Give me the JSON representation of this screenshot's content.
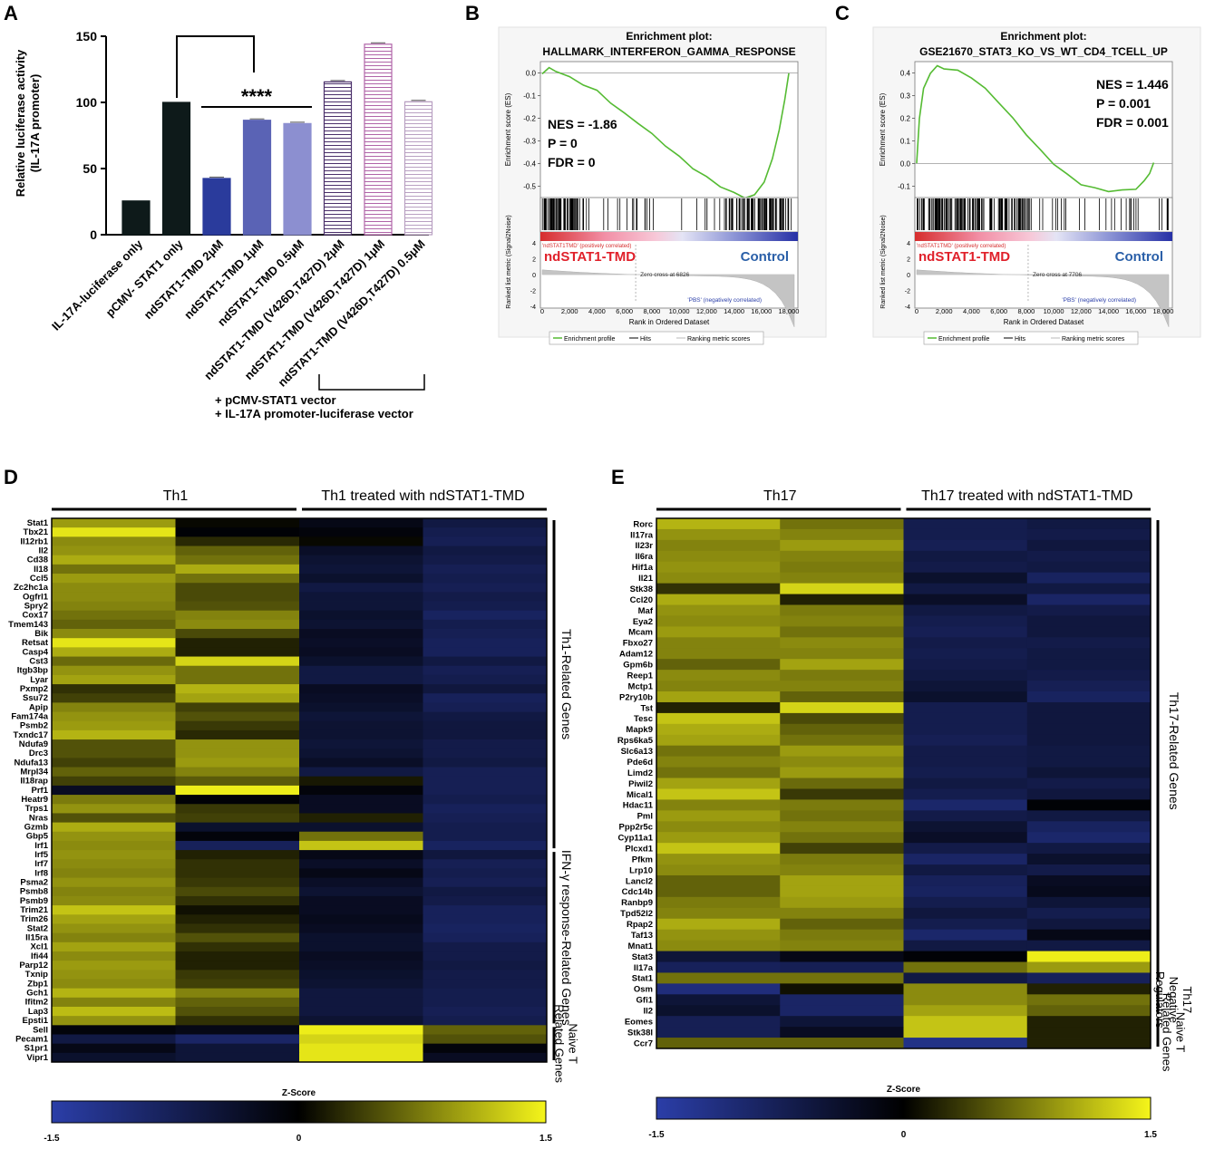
{
  "panels": {
    "a": "A",
    "b": "B",
    "c": "C",
    "d": "D",
    "e": "E"
  },
  "chart_data": [
    {
      "id": "A",
      "type": "bar",
      "title": "",
      "ylabel": "Relative luciferase activity\n(IL-17A promoter)",
      "ylim": [
        0,
        150
      ],
      "yticks": [
        0,
        50,
        100,
        150
      ],
      "categories": [
        "IL-17A-luciferase only",
        "pCMV- STAT1 only",
        "ndSTAT1-TMD 2μM",
        "ndSTAT1-TMD 1μM",
        "ndSTAT1-TMD 0.5μM",
        "ndSTAT1-TMD (V426D,T427D) 2μM",
        "ndSTAT1-TMD (V426D,T427D) 1μM",
        "ndSTAT1-TMD (V426D,T427D) 0.5μM"
      ],
      "values": [
        25.5,
        100,
        42.5,
        86.5,
        84,
        115.5,
        144,
        100.5
      ],
      "colors": [
        "#0e1a1a",
        "#0e1a1a",
        "#2a3b9c",
        "#5a63b5",
        "#8c8fd0",
        "#4a2f6a",
        "#b064a8",
        "#b9a0c2"
      ],
      "patterns": [
        "solid",
        "solid",
        "solid",
        "solid",
        "solid",
        "hatch",
        "hatch",
        "hatch"
      ],
      "significance": "****",
      "footnote": [
        "+ pCMV-STAT1 vector",
        "+ IL-17A promoter-luciferase vector"
      ]
    },
    {
      "id": "B",
      "type": "line",
      "title": [
        "Enrichment plot:",
        "HALLMARK_INTERFERON_GAMMA_RESPONSE"
      ],
      "ylabel": "Enrichment score (ES)",
      "ylabel2": "Ranked list metric (Signal2Noise)",
      "xlabel": "Rank in Ordered Dataset",
      "ylim": [
        -0.55,
        0.05
      ],
      "yticks": [
        "0.0",
        "-0.1",
        "-0.2",
        "-0.3",
        "-0.4",
        "-0.5"
      ],
      "xticks": [
        "0",
        "2,000",
        "4,000",
        "6,000",
        "8,000",
        "10,000",
        "12,000",
        "14,000",
        "16,000",
        "18,000"
      ],
      "x": [
        0,
        500,
        1000,
        2000,
        3000,
        4000,
        5000,
        6000,
        7000,
        8000,
        9000,
        10000,
        11000,
        12000,
        13000,
        14000,
        14800,
        15500,
        16200,
        16800,
        17300,
        17700,
        18000
      ],
      "es": [
        0.0,
        0.02,
        0.01,
        -0.02,
        -0.05,
        -0.08,
        -0.13,
        -0.18,
        -0.22,
        -0.27,
        -0.32,
        -0.37,
        -0.42,
        -0.46,
        -0.5,
        -0.53,
        -0.55,
        -0.54,
        -0.48,
        -0.38,
        -0.25,
        -0.12,
        0.0
      ],
      "stats": [
        "NES = -1.86",
        "P = 0",
        "FDR = 0"
      ],
      "pos_label": "ndSTAT1-TMD",
      "neg_label": "Control",
      "bar_pos_text": "'ndSTAT1TMD' (positively correlated)",
      "bar_neg_text": "'PBS' (negatively correlated)",
      "zero_cross": "Zero cross at 6826",
      "metric_ticks": [
        "4",
        "2",
        "0",
        "-2",
        "-4"
      ],
      "legend": [
        "Enrichment profile",
        "Hits",
        "Ranking metric scores"
      ]
    },
    {
      "id": "C",
      "type": "line",
      "title": [
        "Enrichment plot:",
        "GSE21670_STAT3_KO_VS_WT_CD4_TCELL_UP"
      ],
      "ylabel": "Enrichment score (ES)",
      "ylabel2": "Ranked list metric (Signal2Noise)",
      "xlabel": "Rank in Ordered Dataset",
      "ylim": [
        -0.15,
        0.45
      ],
      "yticks": [
        "0.4",
        "0.3",
        "0.2",
        "0.1",
        "0.0",
        "-0.1"
      ],
      "xticks": [
        "0",
        "2,000",
        "4,000",
        "6,000",
        "8,000",
        "10,000",
        "12,000",
        "14,000",
        "16,000",
        "18,000"
      ],
      "x": [
        0,
        200,
        500,
        1000,
        1500,
        2000,
        3000,
        4000,
        5000,
        6000,
        7000,
        8000,
        9000,
        10000,
        11000,
        12000,
        13000,
        14000,
        15000,
        16000,
        16600,
        17000,
        17300
      ],
      "es": [
        0.0,
        0.2,
        0.33,
        0.4,
        0.43,
        0.42,
        0.41,
        0.38,
        0.33,
        0.27,
        0.2,
        0.13,
        0.06,
        0.0,
        -0.05,
        -0.09,
        -0.11,
        -0.12,
        -0.12,
        -0.11,
        -0.08,
        -0.04,
        0.0
      ],
      "stats": [
        "NES = 1.446",
        "P = 0.001",
        "FDR = 0.001"
      ],
      "pos_label": "ndSTAT1-TMD",
      "neg_label": "Control",
      "bar_pos_text": "'ndSTAT1TMD' (positively correlated)",
      "bar_neg_text": "'PBS' (negatively correlated)",
      "zero_cross": "Zero cross at 7706",
      "metric_ticks": [
        "4",
        "2",
        "0",
        "-2",
        "-4"
      ],
      "legend": [
        "Enrichment profile",
        "Hits",
        "Ranking metric scores"
      ]
    },
    {
      "id": "D",
      "type": "heatmap",
      "groups": [
        "Th1",
        "Th1 treated with ndSTAT1-TMD"
      ],
      "rows": [
        "Stat1",
        "Tbx21",
        "Il12rb1",
        "Il2",
        "Cd38",
        "Il18",
        "Ccl5",
        "Zc2hc1a",
        "Ogfrl1",
        "Spry2",
        "Cox17",
        "Tmem143",
        "Bik",
        "Retsat",
        "Casp4",
        "Cst3",
        "Itgb3bp",
        "Lyar",
        "Pxmp2",
        "Ssu72",
        "Apip",
        "Fam174a",
        "Psmb2",
        "Txndc17",
        "Ndufa9",
        "Drc3",
        "Ndufa13",
        "Mrpl34",
        "Il18rap",
        "Prf1",
        "Heatr9",
        "Trps1",
        "Nras",
        "Gzmb",
        "Gbp5",
        "Irf1",
        "Irf5",
        "Irf7",
        "Irf8",
        "Psma2",
        "Psmb8",
        "Psmb9",
        "Trim21",
        "Trim26",
        "Stat2",
        "Il15ra",
        "Xcl1",
        "Ifi44",
        "Parp12",
        "Txnip",
        "Zbp1",
        "Gch1",
        "Ifitm2",
        "Lap3",
        "Epsti1",
        "Sell",
        "Pecam1",
        "S1pr1",
        "Vipr1"
      ],
      "z": [
        [
          0.95,
          0.05,
          -0.2,
          -0.6
        ],
        [
          1.4,
          -0.05,
          -0.1,
          -0.7
        ],
        [
          0.85,
          0.25,
          0.05,
          -0.75
        ],
        [
          0.9,
          0.6,
          -0.35,
          -0.6
        ],
        [
          1.05,
          0.7,
          -0.45,
          -0.65
        ],
        [
          0.7,
          1.05,
          -0.5,
          -0.75
        ],
        [
          0.95,
          0.7,
          -0.4,
          -0.7
        ],
        [
          0.85,
          0.45,
          -0.6,
          -0.75
        ],
        [
          0.85,
          0.45,
          -0.5,
          -0.65
        ],
        [
          0.8,
          0.5,
          -0.5,
          -0.7
        ],
        [
          0.7,
          0.8,
          -0.4,
          -0.85
        ],
        [
          0.6,
          0.85,
          -0.45,
          -0.7
        ],
        [
          0.85,
          0.45,
          -0.3,
          -0.75
        ],
        [
          1.4,
          0.2,
          -0.35,
          -0.8
        ],
        [
          1.05,
          0.2,
          -0.3,
          -0.8
        ],
        [
          0.65,
          1.3,
          -0.4,
          -0.6
        ],
        [
          0.9,
          0.7,
          -0.6,
          -0.75
        ],
        [
          1.0,
          0.7,
          -0.6,
          -0.7
        ],
        [
          0.3,
          1.1,
          -0.3,
          -0.55
        ],
        [
          0.4,
          1.0,
          -0.35,
          -0.8
        ],
        [
          0.8,
          0.4,
          -0.4,
          -0.75
        ],
        [
          0.9,
          0.5,
          -0.5,
          -0.6
        ],
        [
          0.95,
          0.35,
          -0.45,
          -0.55
        ],
        [
          1.1,
          0.25,
          -0.45,
          -0.55
        ],
        [
          0.5,
          0.9,
          -0.5,
          -0.65
        ],
        [
          0.5,
          0.9,
          -0.45,
          -0.65
        ],
        [
          0.4,
          0.95,
          -0.35,
          -0.6
        ],
        [
          0.6,
          0.8,
          -0.6,
          -0.75
        ],
        [
          0.4,
          0.55,
          0.15,
          -0.75
        ],
        [
          -0.3,
          1.45,
          -0.1,
          -0.75
        ],
        [
          0.75,
          -0.05,
          -0.3,
          -0.7
        ],
        [
          0.9,
          0.35,
          -0.3,
          -0.8
        ],
        [
          0.5,
          0.4,
          0.2,
          -0.75
        ],
        [
          1.05,
          -0.4,
          -0.4,
          -0.7
        ],
        [
          0.9,
          -0.1,
          0.7,
          -0.7
        ],
        [
          0.85,
          -0.8,
          1.2,
          -0.85
        ],
        [
          0.9,
          0.2,
          -0.2,
          -0.55
        ],
        [
          0.85,
          0.3,
          -0.35,
          -0.75
        ],
        [
          0.8,
          0.3,
          -0.2,
          -0.7
        ],
        [
          0.9,
          0.35,
          -0.35,
          -0.75
        ],
        [
          0.8,
          0.45,
          -0.45,
          -0.6
        ],
        [
          0.85,
          0.3,
          -0.3,
          -0.65
        ],
        [
          1.2,
          0.1,
          -0.3,
          -0.8
        ],
        [
          1.0,
          0.2,
          -0.25,
          -0.8
        ],
        [
          0.9,
          0.3,
          -0.3,
          -0.85
        ],
        [
          0.8,
          0.5,
          -0.4,
          -0.8
        ],
        [
          1.0,
          0.3,
          -0.4,
          -0.65
        ],
        [
          0.85,
          0.2,
          -0.3,
          -0.65
        ],
        [
          0.95,
          0.2,
          -0.35,
          -0.6
        ],
        [
          0.9,
          0.35,
          -0.4,
          -0.65
        ],
        [
          0.85,
          0.4,
          -0.45,
          -0.65
        ],
        [
          1.1,
          0.8,
          -0.55,
          -0.7
        ],
        [
          0.8,
          0.6,
          -0.55,
          -0.7
        ],
        [
          1.15,
          0.5,
          -0.55,
          -0.75
        ],
        [
          0.9,
          0.3,
          -0.45,
          -0.7
        ],
        [
          -0.1,
          -0.2,
          1.45,
          0.6
        ],
        [
          -0.6,
          -0.9,
          1.3,
          0.5
        ],
        [
          -0.2,
          -0.5,
          1.4,
          -0.1
        ],
        [
          -0.4,
          -0.5,
          1.4,
          -0.3
        ]
      ],
      "side_labels": [
        "Th1-Related Genes",
        "IFN-γ response-Related Genes",
        "Naive T Related Genes"
      ],
      "side_rows": [
        [
          0,
          35
        ],
        [
          36,
          54
        ],
        [
          55,
          58
        ]
      ],
      "colorbar": {
        "title": "Z-Score",
        "min": "-1.5",
        "mid": "0",
        "max": "1.5"
      },
      "colors": {
        "low": "#2b3ea8",
        "mid": "#000000",
        "high": "#f5f51a"
      }
    },
    {
      "id": "E",
      "type": "heatmap",
      "groups": [
        "Th17",
        "Th17 treated with ndSTAT1-TMD"
      ],
      "rows": [
        "Rorc",
        "Il17ra",
        "Il23r",
        "Il6ra",
        "Hif1a",
        "Il21",
        "Stk38",
        "Ccl20",
        "Maf",
        "Eya2",
        "Mcam",
        "Fbxo27",
        "Adam12",
        "Gpm6b",
        "Reep1",
        "Mctp1",
        "P2ry10b",
        "Tst",
        "Tesc",
        "Mapk9",
        "Rps6ka5",
        "Slc6a13",
        "Pde6d",
        "Limd2",
        "Piwil2",
        "Mical1",
        "Hdac11",
        "Pml",
        "Ppp2r5c",
        "Cyp11a1",
        "Plcxd1",
        "Pfkm",
        "Lrp10",
        "Lancl2",
        "Cdc14b",
        "Ranbp9",
        "Tpd52l2",
        "Rpap2",
        "Taf13",
        "Mnat1",
        "Stat3",
        "Il17a",
        "Stat1",
        "Osm",
        "Gfi1",
        "Il2",
        "Eomes",
        "Stk38l",
        "Ccr7"
      ],
      "z": [
        [
          1.1,
          0.7,
          -0.7,
          -0.6
        ],
        [
          0.9,
          0.8,
          -0.7,
          -0.65
        ],
        [
          0.8,
          0.95,
          -0.75,
          -0.55
        ],
        [
          0.85,
          0.8,
          -0.6,
          -0.65
        ],
        [
          0.9,
          0.75,
          -0.65,
          -0.6
        ],
        [
          0.85,
          0.8,
          -0.4,
          -0.85
        ],
        [
          0.3,
          1.3,
          -0.6,
          -0.6
        ],
        [
          1.05,
          0.2,
          -0.35,
          -0.9
        ],
        [
          0.9,
          0.75,
          -0.6,
          -0.65
        ],
        [
          0.85,
          0.8,
          -0.7,
          -0.55
        ],
        [
          0.95,
          0.7,
          -0.75,
          -0.55
        ],
        [
          0.8,
          0.85,
          -0.65,
          -0.65
        ],
        [
          0.8,
          0.8,
          -0.7,
          -0.6
        ],
        [
          0.6,
          1.0,
          -0.65,
          -0.6
        ],
        [
          0.85,
          0.75,
          -0.6,
          -0.65
        ],
        [
          0.8,
          0.8,
          -0.5,
          -0.75
        ],
        [
          1.0,
          0.6,
          -0.4,
          -0.85
        ],
        [
          0.2,
          1.3,
          -0.7,
          -0.55
        ],
        [
          1.2,
          0.45,
          -0.7,
          -0.55
        ],
        [
          1.05,
          0.6,
          -0.7,
          -0.55
        ],
        [
          1.0,
          0.7,
          -0.75,
          -0.55
        ],
        [
          0.7,
          0.95,
          -0.65,
          -0.6
        ],
        [
          0.8,
          0.85,
          -0.65,
          -0.6
        ],
        [
          0.7,
          0.95,
          -0.7,
          -0.5
        ],
        [
          1.0,
          0.65,
          -0.6,
          -0.65
        ],
        [
          1.2,
          0.35,
          -0.7,
          -0.55
        ],
        [
          0.8,
          0.75,
          -0.95,
          -0.05
        ],
        [
          0.95,
          0.7,
          -0.65,
          -0.6
        ],
        [
          0.85,
          0.8,
          -0.45,
          -0.85
        ],
        [
          0.95,
          0.7,
          -0.35,
          -0.95
        ],
        [
          1.2,
          0.4,
          -0.65,
          -0.6
        ],
        [
          0.9,
          0.75,
          -0.9,
          -0.4
        ],
        [
          0.85,
          0.8,
          -0.6,
          -0.65
        ],
        [
          0.6,
          1.0,
          -0.8,
          -0.3
        ],
        [
          0.6,
          1.0,
          -0.85,
          -0.25
        ],
        [
          0.75,
          0.95,
          -0.7,
          -0.5
        ],
        [
          0.8,
          0.8,
          -0.55,
          -0.7
        ],
        [
          1.05,
          0.6,
          -0.7,
          -0.55
        ],
        [
          0.9,
          0.75,
          -0.95,
          -0.2
        ],
        [
          0.85,
          0.8,
          -0.6,
          -0.6
        ],
        [
          -0.5,
          -0.2,
          -0.05,
          1.45
        ],
        [
          -0.8,
          -0.75,
          0.7,
          0.95
        ],
        [
          0.7,
          0.7,
          -0.6,
          -0.8
        ],
        [
          -1.1,
          0.1,
          0.85,
          0.2
        ],
        [
          -0.5,
          -0.9,
          0.85,
          0.7
        ],
        [
          -0.4,
          -0.9,
          1.0,
          0.6
        ],
        [
          -0.75,
          -0.5,
          1.2,
          0.2
        ],
        [
          -0.75,
          -0.3,
          1.2,
          0.2
        ],
        [
          0.6,
          0.6,
          -1.2,
          0.2
        ]
      ],
      "side_labels": [
        "Th17-Related Genes",
        "Th17 Negative Regulators",
        "Naive T Related Genes"
      ],
      "side_rows": [
        [
          0,
          42
        ],
        [
          43,
          45
        ],
        [
          46,
          48
        ]
      ],
      "colorbar": {
        "title": "Z-Score",
        "min": "-1.5",
        "mid": "0",
        "max": "1.5"
      },
      "colors": {
        "low": "#2b3ea8",
        "mid": "#000000",
        "high": "#f5f51a"
      }
    }
  ]
}
